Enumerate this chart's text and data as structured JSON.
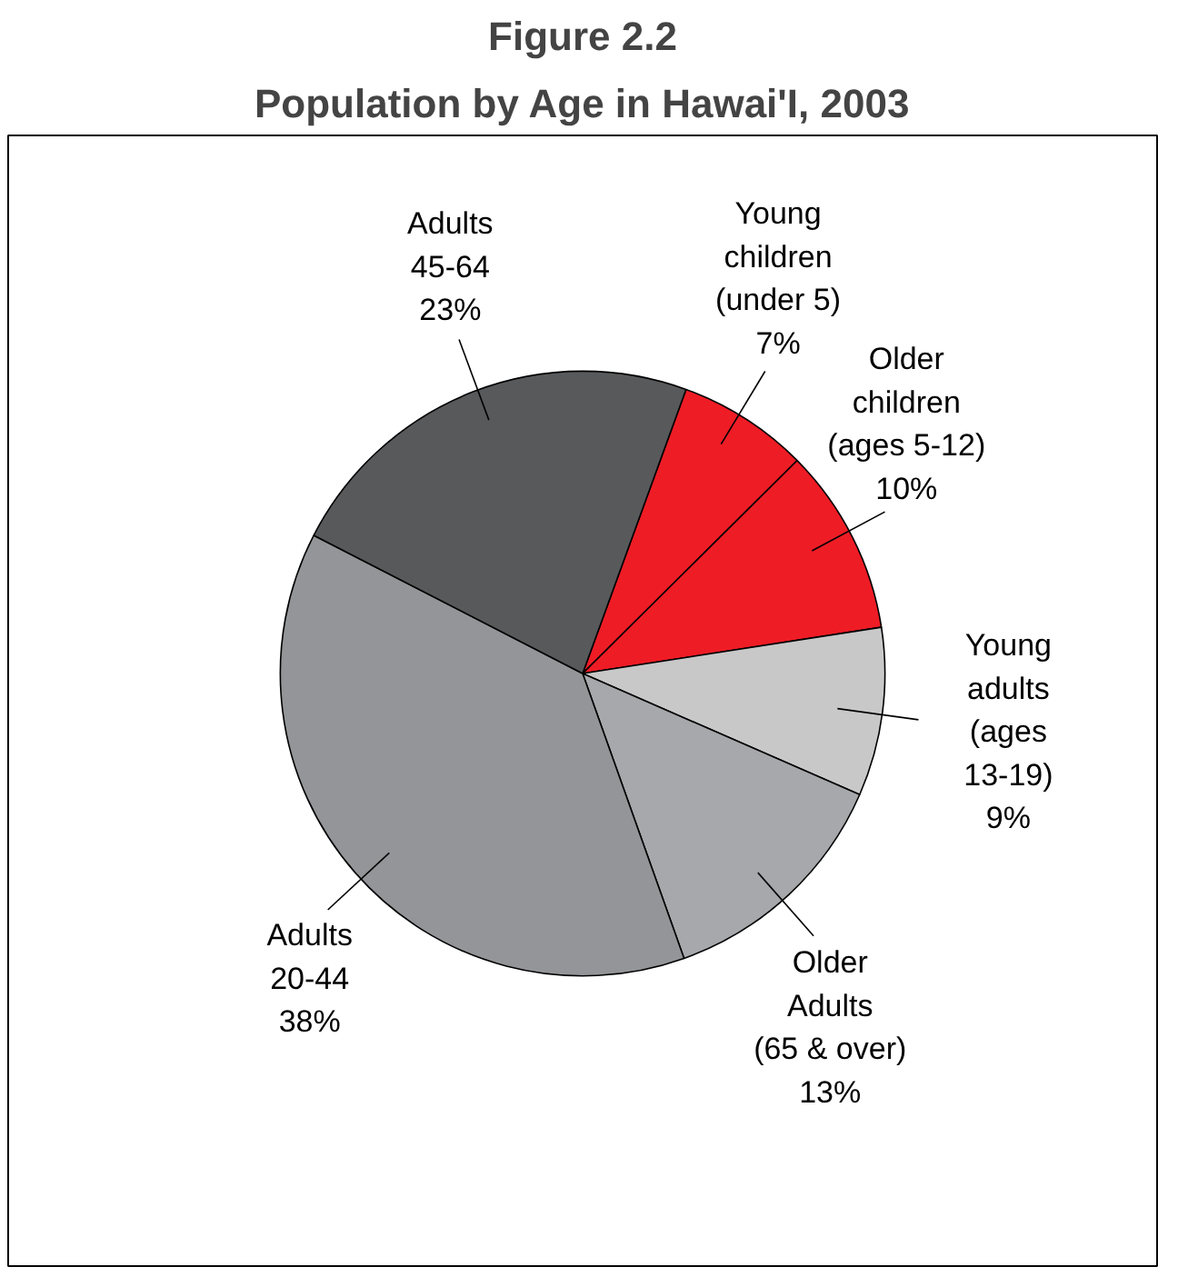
{
  "chart_data": {
    "type": "pie",
    "title": "Figure 2.2",
    "subtitle": "Population by Age in Hawai'I, 2003",
    "categories": [
      "Young\nchildren\n(under 5)",
      "Older\nchildren\n(ages 5-12)",
      "Young\nadults\n(ages\n13-19)",
      "Older\nAdults\n(65 & over)",
      "Adults\n20-44",
      "Adults\n45-64"
    ],
    "values": [
      7,
      10,
      9,
      13,
      38,
      23
    ],
    "value_labels": [
      "7%",
      "10%",
      "9%",
      "13%",
      "38%",
      "23%"
    ],
    "colors": [
      "#ee1c25",
      "#ee1c25",
      "#c8c8c8",
      "#a6a8ab",
      "#939598",
      "#58595b"
    ]
  }
}
